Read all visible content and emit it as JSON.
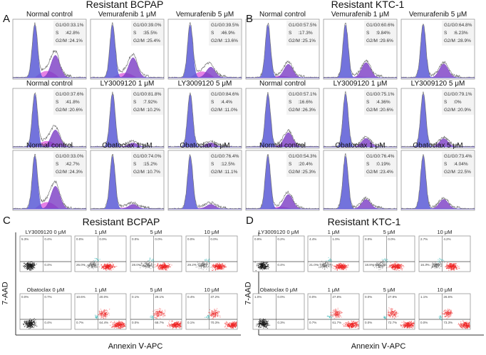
{
  "stat_labels": {
    "g1": "G1/G0",
    "s": "S",
    "g2m": "G2/M"
  },
  "cell_cycle_panels": [
    {
      "letter": "A",
      "title": "Resistant BCPAP",
      "plots": [
        {
          "title": "Normal control",
          "g1": "33.1%",
          "s": "42.8%",
          "g2m": "24.1%"
        },
        {
          "title": "Vemurafenib 1 μM",
          "g1": "39.0%",
          "s": "35.5%",
          "g2m": "25.4%"
        },
        {
          "title": "Vemurafenib 5 μM",
          "g1": "39.5%",
          "s": "46.9%",
          "g2m": "13.6%"
        },
        {
          "title": "Normal control",
          "g1": "37.6%",
          "s": "41.8%",
          "g2m": "20.6%"
        },
        {
          "title": "LY3009120 1 μM",
          "g1": "81.8%",
          "s": "7.92%",
          "g2m": "10.2%"
        },
        {
          "title": "LY3009120 5 μM",
          "g1": "84.6%",
          "s": "4.4%",
          "g2m": "11.0%"
        },
        {
          "title": "Normal control",
          "g1": "33.0%",
          "s": "42.7%",
          "g2m": "24.3%"
        },
        {
          "title": "Obatoclax 1 μM",
          "g1": "74.0%",
          "s": "15.2%",
          "g2m": "10.7%"
        },
        {
          "title": "Obatoclax 5 μM",
          "g1": "76.4%",
          "s": "12.5%",
          "g2m": "11.1%"
        }
      ]
    },
    {
      "letter": "B",
      "title": "Resistant  KTC-1",
      "plots": [
        {
          "title": "Normal control",
          "g1": "57.5%",
          "s": "17.3%",
          "g2m": "25.1%"
        },
        {
          "title": "Vemurafenib 1 μM",
          "g1": "60.6%",
          "s": "9.84%",
          "g2m": "29.6%"
        },
        {
          "title": "Vemurafenib 5 μM",
          "g1": "64.8%",
          "s": "6.23%",
          "g2m": "28.9%"
        },
        {
          "title": "Normal control",
          "g1": "57.1%",
          "s": "16.6%",
          "g2m": "26.3%"
        },
        {
          "title": "LY3009120 1 μM",
          "g1": "75.1%",
          "s": "4.36%",
          "g2m": "20.6%"
        },
        {
          "title": "LY3009120 5 μM",
          "g1": "79.1%",
          "s": "0%",
          "g2m": "20.9%"
        },
        {
          "title": "Normal control",
          "g1": "54.3%",
          "s": "20.4%",
          "g2m": "25.3%"
        },
        {
          "title": "Obatoclax 1 μM",
          "g1": "76.4%",
          "s": "0.19%",
          "g2m": "23.4%"
        },
        {
          "title": "Obatoclax 5 μM",
          "g1": "73.4%",
          "s": "4.04%",
          "g2m": "22.5%"
        }
      ]
    }
  ],
  "apoptosis_panels": [
    {
      "letter": "C",
      "title": "Resistant BCPAP",
      "ylabel": "7-AAD",
      "xlabel": "Annexin Ⅴ-APC",
      "plots": [
        {
          "title": "LY3009120 0 μM",
          "quadrants": [
            "5.3%",
            "0.4%",
            "",
            "0.4%"
          ]
        },
        {
          "title": "1 μM",
          "quadrants": [
            "0.0%",
            "0.0%",
            "26.0%",
            ""
          ]
        },
        {
          "title": "5 μM",
          "quadrants": [
            "0.0%",
            "0.0%",
            "28.0%",
            ""
          ]
        },
        {
          "title": "10 μM",
          "quadrants": [
            "0.0%",
            "0.0%",
            "29.2%",
            ""
          ]
        },
        {
          "title": "Obatoclax 0 μM",
          "quadrants": [
            "0.0%",
            "0.7%",
            "",
            "0.4%"
          ]
        },
        {
          "title": "1 μM",
          "quadrants": [
            "10.6%",
            "20.0%",
            "0.7%",
            "64.4%"
          ]
        },
        {
          "title": "5 μM",
          "quadrants": [
            "0.1%",
            "29.1%",
            "0.0%",
            "68.7%"
          ]
        },
        {
          "title": "10 μM",
          "quadrants": [
            "0.4%",
            "37.2%",
            "0.1%",
            "70.3%"
          ]
        }
      ]
    },
    {
      "letter": "D",
      "title": "Resistant KTC-1",
      "ylabel": "7-AAD",
      "xlabel": "Annexin Ⅴ-APC",
      "plots": [
        {
          "title": "LY3009120 0 μM",
          "quadrants": [
            "0.9%",
            "0.2%",
            "",
            "0.4%"
          ]
        },
        {
          "title": "1 μM",
          "quadrants": [
            "4.4%",
            "1.0%",
            "21.0%",
            ""
          ]
        },
        {
          "title": "5 μM",
          "quadrants": [
            "0.0%",
            "0.0%",
            "18.8%",
            ""
          ]
        },
        {
          "title": "10 μM",
          "quadrants": [
            "2.7%",
            "4.2%",
            "16.3%",
            ""
          ]
        },
        {
          "title": "Obatoclax 0 μM",
          "quadrants": [
            "1.0%",
            "0.0%",
            "",
            "0.3%"
          ]
        },
        {
          "title": "1 μM",
          "quadrants": [
            "0.0%",
            "27.8%",
            "0.7%",
            "61.7%"
          ]
        },
        {
          "title": "5 μM",
          "quadrants": [
            "0.0%",
            "27.8%",
            "0.0%",
            "72.7%"
          ]
        },
        {
          "title": "10 μM",
          "quadrants": [
            "1.1%",
            "26.6%",
            "0.0%",
            "73.3%"
          ]
        }
      ]
    }
  ],
  "colors": {
    "g1": "#5a5ad6",
    "s": "#e06ae0",
    "g2m": "#7b3cc4",
    "apoptotic": "#ee2222",
    "live": "#111111",
    "transition": "#3ab8b8"
  }
}
